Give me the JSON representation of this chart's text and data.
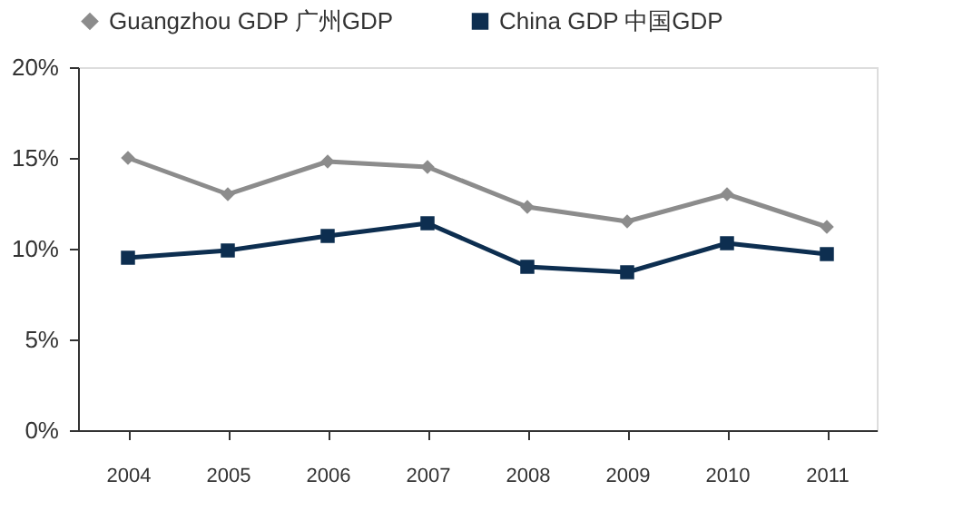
{
  "chart_data": {
    "type": "line",
    "categories": [
      "2004",
      "2005",
      "2006",
      "2007",
      "2008",
      "2009",
      "2010",
      "2011"
    ],
    "series": [
      {
        "name": "Guangzhou GDP 广州GDP",
        "color": "#8c8c8c",
        "marker": "diamond",
        "values": [
          15.0,
          13.0,
          14.8,
          14.5,
          12.3,
          11.5,
          13.0,
          11.2
        ]
      },
      {
        "name": "China GDP 中国GDP",
        "color": "#0d2e50",
        "marker": "square",
        "values": [
          9.5,
          9.9,
          10.7,
          11.4,
          9.0,
          8.7,
          10.3,
          9.7
        ]
      }
    ],
    "ylim": [
      0,
      20
    ],
    "yticks": [
      {
        "value": 0,
        "label": "0%"
      },
      {
        "value": 5,
        "label": "5%"
      },
      {
        "value": 10,
        "label": "10%"
      },
      {
        "value": 15,
        "label": "15%"
      },
      {
        "value": 20,
        "label": "20%"
      }
    ],
    "grid": false,
    "legend": "top",
    "line_style": "solid"
  }
}
